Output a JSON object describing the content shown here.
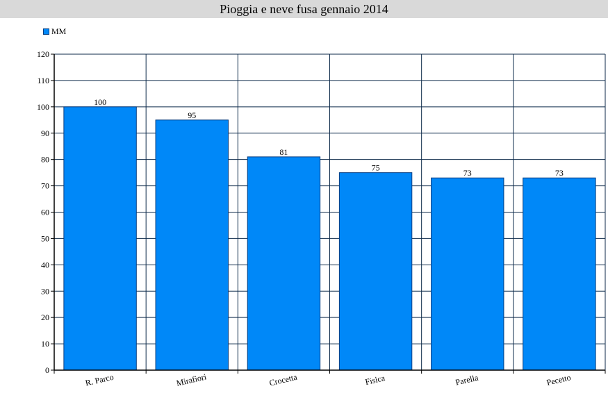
{
  "chart_data": {
    "type": "bar",
    "title": "Pioggia e neve fusa gennaio 2014",
    "categories": [
      "R. Parco",
      "Mirafiori",
      "Crocetta",
      "Fisica",
      "Parella",
      "Pecetto"
    ],
    "series": [
      {
        "name": "MM",
        "values": [
          100,
          95,
          81,
          75,
          73,
          73
        ],
        "color": "#0088f8"
      }
    ],
    "ylim": [
      0,
      120
    ],
    "yticks": [
      0,
      10,
      20,
      30,
      40,
      50,
      60,
      70,
      80,
      90,
      100,
      110,
      120
    ],
    "grid": true,
    "legend_position": "top-left",
    "data_labels": true,
    "colors": {
      "bar_fill": "#0088f8",
      "bar_stroke": "#003c80",
      "grid": "#0d2a4a",
      "title_background": "#d9d9d9"
    }
  }
}
